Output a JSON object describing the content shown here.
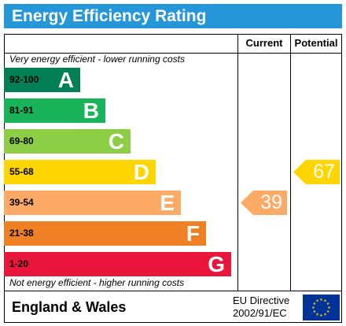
{
  "title": "Energy Efficiency Rating",
  "columns": {
    "current": "Current",
    "potential": "Potential"
  },
  "notes": {
    "top": "Very energy efficient - lower running costs",
    "bottom": "Not energy efficient - higher running costs"
  },
  "bands": [
    {
      "range": "92-100",
      "letter": "A",
      "color": "#008054"
    },
    {
      "range": "81-91",
      "letter": "B",
      "color": "#19b459"
    },
    {
      "range": "69-80",
      "letter": "C",
      "color": "#8dce46"
    },
    {
      "range": "55-68",
      "letter": "D",
      "color": "#ffd500"
    },
    {
      "range": "39-54",
      "letter": "E",
      "color": "#fcaa65"
    },
    {
      "range": "21-38",
      "letter": "F",
      "color": "#ef8023"
    },
    {
      "range": "1-20",
      "letter": "G",
      "color": "#e9153b"
    }
  ],
  "ratings": {
    "current": {
      "value": "39",
      "band": "E",
      "color": "#fcaa65"
    },
    "potential": {
      "value": "67",
      "band": "D",
      "color": "#ffd500"
    }
  },
  "footer": {
    "country": "England & Wales",
    "directive_line1": "EU Directive",
    "directive_line2": "2002/91/EC",
    "flag_icon": "eu-flag-icon"
  }
}
